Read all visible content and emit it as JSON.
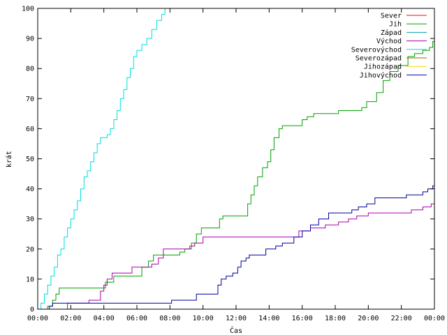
{
  "chart_data": {
    "type": "line",
    "xlabel": "Čas",
    "ylabel": "krát",
    "xlim": [
      0,
      24
    ],
    "ylim": [
      0,
      100
    ],
    "x_ticks": [
      {
        "value": 0,
        "label": "00:00"
      },
      {
        "value": 2,
        "label": "02:00"
      },
      {
        "value": 4,
        "label": "04:00"
      },
      {
        "value": 6,
        "label": "06:00"
      },
      {
        "value": 8,
        "label": "08:00"
      },
      {
        "value": 10,
        "label": "10:00"
      },
      {
        "value": 12,
        "label": "12:00"
      },
      {
        "value": 14,
        "label": "14:00"
      },
      {
        "value": 16,
        "label": "16:00"
      },
      {
        "value": 18,
        "label": "18:00"
      },
      {
        "value": 20,
        "label": "20:00"
      },
      {
        "value": 22,
        "label": "22:00"
      },
      {
        "value": 24,
        "label": "00:00"
      }
    ],
    "y_ticks": [
      0,
      10,
      20,
      30,
      40,
      50,
      60,
      70,
      80,
      90,
      100
    ],
    "grid": false,
    "legend_position": "top-right",
    "series": [
      {
        "name": "Sever",
        "color": "#ff0000",
        "points": []
      },
      {
        "name": "Jih",
        "color": "#00a000",
        "points": [
          [
            0.0,
            0
          ],
          [
            0.6,
            1
          ],
          [
            0.9,
            3
          ],
          [
            1.1,
            5
          ],
          [
            1.3,
            7
          ],
          [
            3.9,
            7
          ],
          [
            4.1,
            9
          ],
          [
            4.6,
            11
          ],
          [
            5.9,
            11
          ],
          [
            6.3,
            14
          ],
          [
            6.7,
            16
          ],
          [
            7.0,
            18
          ],
          [
            8.3,
            18
          ],
          [
            8.6,
            19
          ],
          [
            8.9,
            20
          ],
          [
            9.3,
            22
          ],
          [
            9.6,
            25
          ],
          [
            9.9,
            27
          ],
          [
            10.8,
            27
          ],
          [
            11.0,
            30
          ],
          [
            11.2,
            31
          ],
          [
            12.5,
            31
          ],
          [
            12.7,
            35
          ],
          [
            12.9,
            38
          ],
          [
            13.1,
            41
          ],
          [
            13.3,
            44
          ],
          [
            13.6,
            47
          ],
          [
            13.9,
            49
          ],
          [
            14.1,
            53
          ],
          [
            14.3,
            57
          ],
          [
            14.6,
            60
          ],
          [
            14.8,
            61
          ],
          [
            15.8,
            61
          ],
          [
            16.0,
            63
          ],
          [
            16.3,
            64
          ],
          [
            16.7,
            65
          ],
          [
            18.0,
            65
          ],
          [
            18.2,
            66
          ],
          [
            19.4,
            66
          ],
          [
            19.6,
            67
          ],
          [
            19.9,
            69
          ],
          [
            20.2,
            69
          ],
          [
            20.5,
            72
          ],
          [
            20.9,
            76
          ],
          [
            21.3,
            79
          ],
          [
            21.8,
            81
          ],
          [
            22.4,
            84
          ],
          [
            22.8,
            85
          ],
          [
            23.3,
            86
          ],
          [
            23.7,
            87
          ],
          [
            23.9,
            89
          ],
          [
            24.0,
            90
          ]
        ]
      },
      {
        "name": "Západ",
        "color": "#00aaaa",
        "points": []
      },
      {
        "name": "Východ",
        "color": "#aa00aa",
        "points": [
          [
            1.7,
            0
          ],
          [
            1.8,
            2
          ],
          [
            3.0,
            2
          ],
          [
            3.1,
            3
          ],
          [
            3.6,
            3
          ],
          [
            3.8,
            6
          ],
          [
            4.0,
            8
          ],
          [
            4.2,
            10
          ],
          [
            4.5,
            12
          ],
          [
            5.4,
            12
          ],
          [
            5.7,
            14
          ],
          [
            6.6,
            14
          ],
          [
            6.9,
            15
          ],
          [
            7.3,
            17
          ],
          [
            7.6,
            20
          ],
          [
            8.9,
            20
          ],
          [
            9.2,
            21
          ],
          [
            9.5,
            22
          ],
          [
            10.0,
            24
          ],
          [
            15.5,
            24
          ],
          [
            15.8,
            26
          ],
          [
            16.5,
            27
          ],
          [
            17.4,
            28
          ],
          [
            18.2,
            29
          ],
          [
            18.8,
            30
          ],
          [
            19.3,
            31
          ],
          [
            20.0,
            32
          ],
          [
            22.2,
            32
          ],
          [
            22.6,
            33
          ],
          [
            23.3,
            34
          ],
          [
            23.8,
            35
          ],
          [
            24.0,
            35
          ]
        ]
      },
      {
        "name": "Severovýchod",
        "color": "#00dddd",
        "points": [
          [
            0.0,
            0
          ],
          [
            0.2,
            2
          ],
          [
            0.4,
            5
          ],
          [
            0.6,
            8
          ],
          [
            0.8,
            11
          ],
          [
            1.0,
            14
          ],
          [
            1.2,
            18
          ],
          [
            1.4,
            20
          ],
          [
            1.6,
            24
          ],
          [
            1.8,
            27
          ],
          [
            2.0,
            30
          ],
          [
            2.2,
            33
          ],
          [
            2.4,
            36
          ],
          [
            2.6,
            40
          ],
          [
            2.8,
            44
          ],
          [
            3.0,
            46
          ],
          [
            3.2,
            49
          ],
          [
            3.4,
            52
          ],
          [
            3.6,
            55
          ],
          [
            3.8,
            57
          ],
          [
            4.2,
            58
          ],
          [
            4.4,
            60
          ],
          [
            4.6,
            63
          ],
          [
            4.8,
            66
          ],
          [
            5.0,
            70
          ],
          [
            5.2,
            73
          ],
          [
            5.4,
            77
          ],
          [
            5.6,
            80
          ],
          [
            5.8,
            84
          ],
          [
            6.0,
            86
          ],
          [
            6.3,
            88
          ],
          [
            6.6,
            90
          ],
          [
            6.9,
            93
          ],
          [
            7.2,
            96
          ],
          [
            7.5,
            98
          ],
          [
            7.7,
            100
          ]
        ]
      },
      {
        "name": "Severozápad",
        "color": "#a06000",
        "points": []
      },
      {
        "name": "Jihozápad",
        "color": "#ffd700",
        "points": []
      },
      {
        "name": "Jihovýchod",
        "color": "#0000a0",
        "points": [
          [
            0.5,
            0
          ],
          [
            0.7,
            1
          ],
          [
            0.9,
            2
          ],
          [
            8.0,
            2
          ],
          [
            8.1,
            3
          ],
          [
            9.5,
            3
          ],
          [
            9.6,
            5
          ],
          [
            10.7,
            5
          ],
          [
            10.9,
            8
          ],
          [
            11.1,
            10
          ],
          [
            11.4,
            11
          ],
          [
            11.8,
            12
          ],
          [
            12.1,
            14
          ],
          [
            12.3,
            16
          ],
          [
            12.6,
            17
          ],
          [
            12.8,
            18
          ],
          [
            13.5,
            18
          ],
          [
            13.8,
            20
          ],
          [
            14.2,
            20
          ],
          [
            14.4,
            21
          ],
          [
            14.8,
            22
          ],
          [
            15.5,
            24
          ],
          [
            16.0,
            26
          ],
          [
            16.5,
            28
          ],
          [
            17.0,
            30
          ],
          [
            17.6,
            32
          ],
          [
            18.7,
            32
          ],
          [
            19.0,
            33
          ],
          [
            19.4,
            34
          ],
          [
            19.9,
            35
          ],
          [
            20.4,
            37
          ],
          [
            22.0,
            37
          ],
          [
            22.3,
            38
          ],
          [
            23.3,
            39
          ],
          [
            23.6,
            40
          ],
          [
            23.9,
            41
          ],
          [
            24.0,
            41
          ]
        ]
      }
    ]
  }
}
